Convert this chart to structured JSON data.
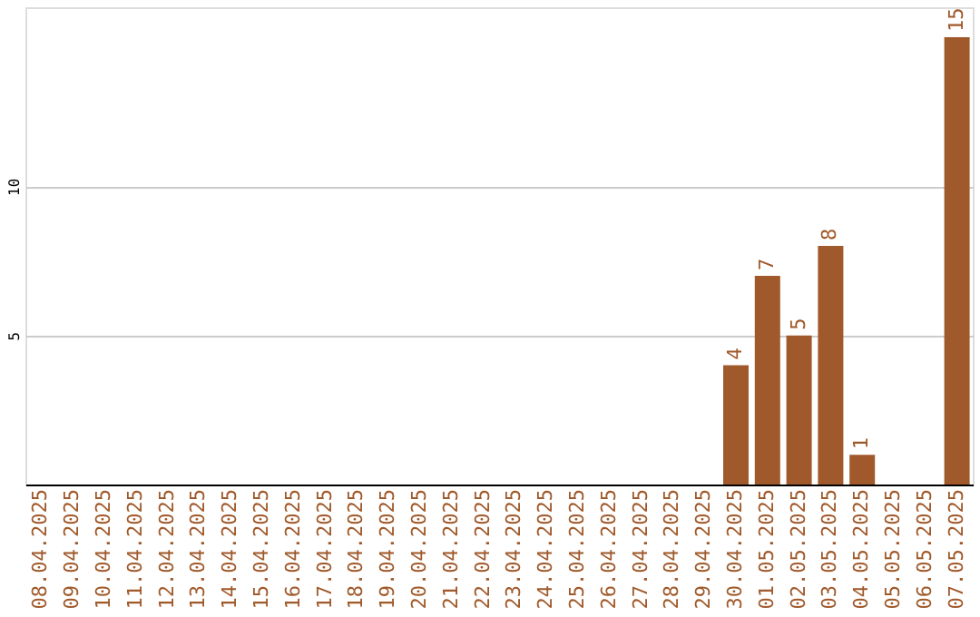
{
  "chart_data": {
    "type": "bar",
    "categories": [
      "08.04.2025",
      "09.04.2025",
      "10.04.2025",
      "11.04.2025",
      "12.04.2025",
      "13.04.2025",
      "14.04.2025",
      "15.04.2025",
      "16.04.2025",
      "17.04.2025",
      "18.04.2025",
      "19.04.2025",
      "20.04.2025",
      "21.04.2025",
      "22.04.2025",
      "23.04.2025",
      "24.04.2025",
      "25.04.2025",
      "26.04.2025",
      "27.04.2025",
      "28.04.2025",
      "29.04.2025",
      "30.04.2025",
      "01.05.2025",
      "02.05.2025",
      "03.05.2025",
      "04.05.2025",
      "05.05.2025",
      "06.05.2025",
      "07.05.2025"
    ],
    "values": [
      0,
      0,
      0,
      0,
      0,
      0,
      0,
      0,
      0,
      0,
      0,
      0,
      0,
      0,
      0,
      0,
      0,
      0,
      0,
      0,
      0,
      0,
      4,
      7,
      5,
      8,
      1,
      0,
      0,
      15
    ],
    "value_labels": [
      null,
      null,
      null,
      null,
      null,
      null,
      null,
      null,
      null,
      null,
      null,
      null,
      null,
      null,
      null,
      null,
      null,
      null,
      null,
      null,
      null,
      null,
      "4",
      "7",
      "5",
      "8",
      "1",
      null,
      null,
      "15"
    ],
    "color": "#a0592a",
    "ylim": [
      0,
      16
    ],
    "yticks": [
      5,
      10
    ],
    "grid": "y"
  }
}
